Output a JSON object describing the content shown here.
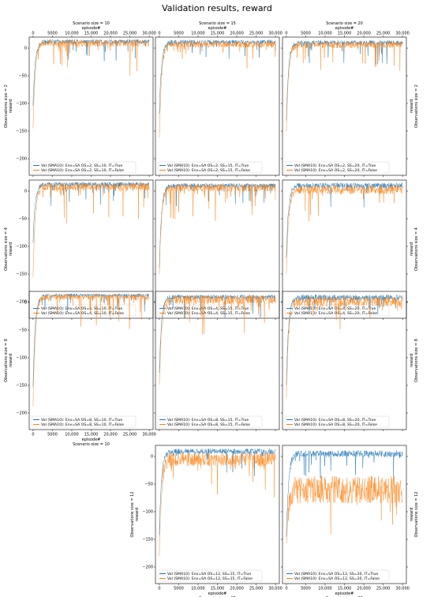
{
  "suptitle": "Validation results, reward",
  "series_colors": {
    "it_true": "#1f77b4",
    "it_false": "#ff7f0e"
  },
  "axis_text": {
    "episode_label": "episode#",
    "reward_label": "reward",
    "scenario_prefix": "Scenario size = ",
    "observation_prefix": "Observations size = ",
    "legend_prefix": "Val (SMA10): Env=SA "
  },
  "scenario_sizes": [
    10,
    15,
    20
  ],
  "observation_sizes": [
    2,
    4,
    8,
    12
  ],
  "xticks": [
    {
      "value": 0,
      "label": "0"
    },
    {
      "value": 5000,
      "label": "5000"
    },
    {
      "value": 10000,
      "label": "10,000"
    },
    {
      "value": 15000,
      "label": "15,000"
    },
    {
      "value": 20000,
      "label": "20,000"
    },
    {
      "value": 25000,
      "label": "25,000"
    },
    {
      "value": 30000,
      "label": "30,000"
    }
  ],
  "yticks": [
    {
      "value": 0,
      "label": "0"
    },
    {
      "value": -50,
      "label": "−50"
    },
    {
      "value": -100,
      "label": "−100"
    },
    {
      "value": -150,
      "label": "−150"
    },
    {
      "value": -200,
      "label": "−200"
    }
  ],
  "chart_data": [
    {
      "type": "line",
      "row": 0,
      "col": 0,
      "xlim": [
        -1000,
        31000
      ],
      "ylim": [
        -230,
        20
      ],
      "legend": "lower left",
      "series": [
        {
          "name": "Val (SMA10): Env=SA OS=2, SS=10, IT=True",
          "start": -100,
          "plateau": 12,
          "noise": 4,
          "spikes": -35,
          "seed": 11
        },
        {
          "name": "Val (SMA10): Env=SA OS=2, SS=10, IT=False",
          "start": -140,
          "plateau": 9,
          "noise": 6,
          "spikes": -60,
          "seed": 12
        }
      ]
    },
    {
      "type": "line",
      "row": 0,
      "col": 1,
      "xlim": [
        -1000,
        31000
      ],
      "ylim": [
        -230,
        20
      ],
      "legend": "lower left",
      "series": [
        {
          "name": "Val (SMA10): Env=SA OS=2, SS=15, IT=True",
          "start": -120,
          "plateau": 11,
          "noise": 4,
          "spikes": -40,
          "seed": 21
        },
        {
          "name": "Val (SMA10): Env=SA OS=2, SS=15, IT=False",
          "start": -165,
          "plateau": 7,
          "noise": 6,
          "spikes": -55,
          "seed": 22
        }
      ]
    },
    {
      "type": "line",
      "row": 0,
      "col": 2,
      "xlim": [
        -1000,
        31000
      ],
      "ylim": [
        -230,
        20
      ],
      "legend": "lower left",
      "series": [
        {
          "name": "Val (SMA10): Env=SA OS=2, SS=20, IT=True",
          "start": -130,
          "plateau": 10,
          "noise": 4,
          "spikes": -40,
          "seed": 31
        },
        {
          "name": "Val (SMA10): Env=SA OS=2, SS=20, IT=False",
          "start": -150,
          "plateau": 6,
          "noise": 6,
          "spikes": -50,
          "seed": 32
        }
      ]
    },
    {
      "type": "line",
      "row": 1,
      "col": 0,
      "xlim": [
        -1000,
        31000
      ],
      "ylim": [
        -230,
        20
      ],
      "legend": "lower left",
      "series": [
        {
          "name": "Val (SMA10): Env=SA OS=4, SS=10, IT=True",
          "start": -90,
          "plateau": 12,
          "noise": 4,
          "spikes": -40,
          "seed": 41
        },
        {
          "name": "Val (SMA10): Env=SA OS=4, SS=10, IT=False",
          "start": -150,
          "plateau": 8,
          "noise": 7,
          "spikes": -70,
          "seed": 42
        }
      ]
    },
    {
      "type": "line",
      "row": 1,
      "col": 1,
      "xlim": [
        -1000,
        31000
      ],
      "ylim": [
        -230,
        20
      ],
      "legend": "lower left",
      "series": [
        {
          "name": "Val (SMA10): Env=SA OS=4, SS=15, IT=True",
          "start": -140,
          "plateau": 10,
          "noise": 4,
          "spikes": -40,
          "seed": 51
        },
        {
          "name": "Val (SMA10): Env=SA OS=4, SS=15, IT=False",
          "start": -155,
          "plateau": 6,
          "noise": 7,
          "spikes": -60,
          "seed": 52
        }
      ]
    },
    {
      "type": "line",
      "row": 1,
      "col": 2,
      "xlim": [
        -1000,
        31000
      ],
      "ylim": [
        -230,
        20
      ],
      "legend": "lower left",
      "series": [
        {
          "name": "Val (SMA10): Env=SA OS=4, SS=20, IT=True",
          "start": -120,
          "plateau": 10,
          "noise": 5,
          "spikes": -40,
          "seed": 61
        },
        {
          "name": "Val (SMA10): Env=SA OS=4, SS=20, IT=False",
          "start": -150,
          "plateau": 3,
          "noise": 8,
          "spikes": -60,
          "seed": 62
        }
      ]
    },
    {
      "type": "line",
      "row": 2,
      "col": 0,
      "xlim": [
        -1000,
        31000
      ],
      "ylim": [
        -230,
        20
      ],
      "legend": "lower left",
      "series": [
        {
          "name": "Val (SMA10): Env=SA OS=8, SS=10, IT=True",
          "start": -150,
          "plateau": 13,
          "noise": 3,
          "spikes": -35,
          "seed": 71
        },
        {
          "name": "Val (SMA10): Env=SA OS=8, SS=10, IT=False",
          "start": -185,
          "plateau": 10,
          "noise": 5,
          "spikes": -60,
          "seed": 72
        }
      ]
    },
    {
      "type": "line",
      "row": 2,
      "col": 1,
      "xlim": [
        -1000,
        31000
      ],
      "ylim": [
        -230,
        20
      ],
      "legend": "lower left",
      "series": [
        {
          "name": "Val (SMA10): Env=SA OS=8, SS=15, IT=True",
          "start": -130,
          "plateau": 10,
          "noise": 4,
          "spikes": -40,
          "seed": 81
        },
        {
          "name": "Val (SMA10): Env=SA OS=8, SS=15, IT=False",
          "start": -155,
          "plateau": 5,
          "noise": 8,
          "spikes": -70,
          "seed": 82
        }
      ]
    },
    {
      "type": "line",
      "row": 2,
      "col": 2,
      "xlim": [
        -1000,
        31000
      ],
      "ylim": [
        -230,
        20
      ],
      "legend": "lower left",
      "series": [
        {
          "name": "Val (SMA10): Env=SA OS=8, SS=20, IT=True",
          "start": -150,
          "plateau": 9,
          "noise": 5,
          "spikes": -40,
          "seed": 91
        },
        {
          "name": "Val (SMA10): Env=SA OS=8, SS=20, IT=False",
          "start": -175,
          "plateau": 2,
          "noise": 9,
          "spikes": -60,
          "seed": 92
        }
      ]
    },
    {
      "type": "line",
      "row": 3,
      "col": 1,
      "xlim": [
        -1000,
        31000
      ],
      "ylim": [
        -230,
        20
      ],
      "legend": "lower left",
      "series": [
        {
          "name": "Val (SMA10): Env=SA OS=12, SS=15, IT=True",
          "start": -140,
          "plateau": 9,
          "noise": 5,
          "spikes": -45,
          "seed": 101
        },
        {
          "name": "Val (SMA10): Env=SA OS=12, SS=15, IT=False",
          "start": -175,
          "plateau": -5,
          "noise": 12,
          "spikes": -70,
          "seed": 102
        }
      ]
    },
    {
      "type": "line",
      "row": 3,
      "col": 2,
      "xlim": [
        -1000,
        31000
      ],
      "ylim": [
        -230,
        20
      ],
      "legend": "lower left",
      "series": [
        {
          "name": "Val (SMA10): Env=SA OS=12, SS=20, IT=True",
          "start": -150,
          "plateau": 5,
          "noise": 6,
          "spikes": -45,
          "seed": 111
        },
        {
          "name": "Val (SMA10): Env=SA OS=12, SS=20, IT=False",
          "start": -180,
          "plateau": -60,
          "noise": 25,
          "spikes": -90,
          "seed": 112
        }
      ]
    }
  ]
}
